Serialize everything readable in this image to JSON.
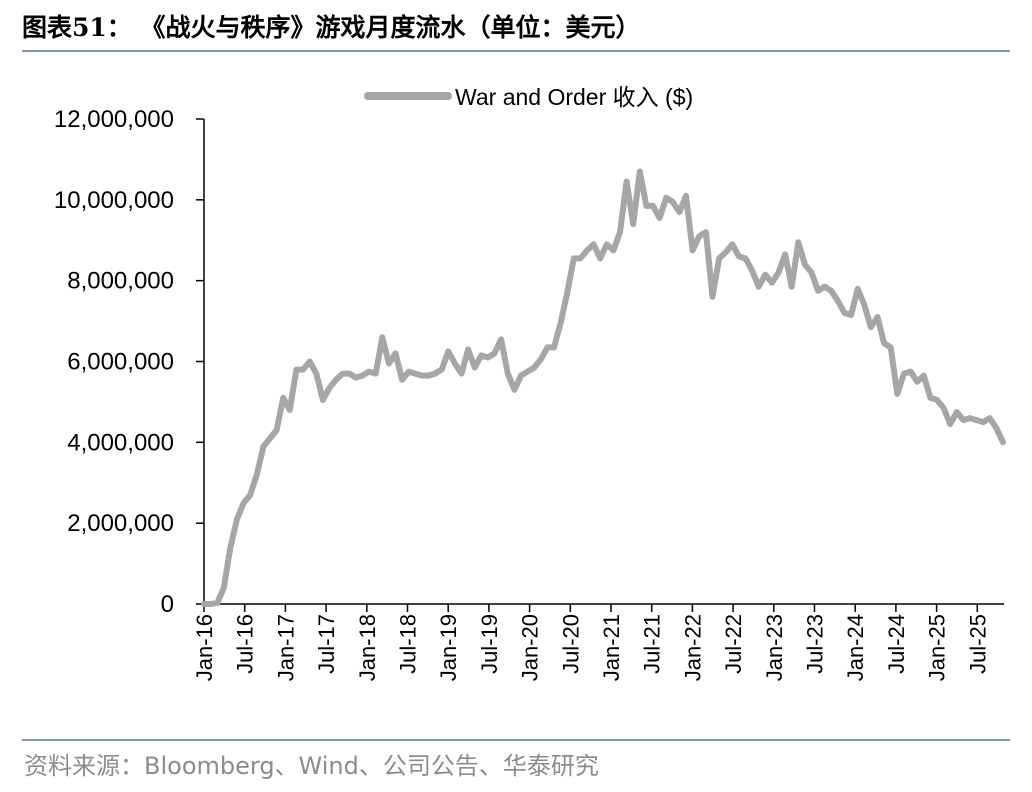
{
  "figure": {
    "title": "图表51：  《战火与秩序》游戏月度流水（单位：美元）",
    "source": "资料来源：Bloomberg、Wind、公司公告、华泰研究"
  },
  "chart_data": {
    "type": "line",
    "ylim": [
      0,
      12000000
    ],
    "yticks": [
      "0",
      "2,000,000",
      "4,000,000",
      "6,000,000",
      "8,000,000",
      "10,000,000",
      "12,000,000"
    ],
    "ytick_values": [
      0,
      2000000,
      4000000,
      6000000,
      8000000,
      10000000,
      12000000
    ],
    "tick_labels": [
      "Jan-16",
      "Jul-16",
      "Jan-17",
      "Jul-17",
      "Jan-18",
      "Jul-18",
      "Jan-19",
      "Jul-19",
      "Jan-20",
      "Jul-20",
      "Jan-21",
      "Jul-21",
      "Jan-22",
      "Jul-22",
      "Jan-23",
      "Jul-23",
      "Jan-24",
      "Jul-24",
      "Jan-25",
      "Jul-25"
    ],
    "legend_position": "top-center",
    "grid": false,
    "series": [
      {
        "name": "War and Order 收入 ($)",
        "color": "#a6a6a6",
        "start": "Jan-16",
        "frequency": "monthly",
        "values": [
          0,
          0,
          20000,
          400000,
          1400000,
          2100000,
          2500000,
          2700000,
          3200000,
          3900000,
          4100000,
          4300000,
          5100000,
          4800000,
          5800000,
          5800000,
          6000000,
          5700000,
          5050000,
          5350000,
          5550000,
          5700000,
          5700000,
          5600000,
          5650000,
          5750000,
          5700000,
          6600000,
          5950000,
          6200000,
          5550000,
          5750000,
          5700000,
          5650000,
          5650000,
          5700000,
          5800000,
          6250000,
          5950000,
          5700000,
          6300000,
          5850000,
          6150000,
          6100000,
          6200000,
          6550000,
          5700000,
          5300000,
          5650000,
          5750000,
          5850000,
          6050000,
          6350000,
          6350000,
          6950000,
          7700000,
          8550000,
          8550000,
          8750000,
          8900000,
          8550000,
          8900000,
          8750000,
          9200000,
          10450000,
          9400000,
          10700000,
          9850000,
          9850000,
          9550000,
          10050000,
          9950000,
          9700000,
          10100000,
          8750000,
          9100000,
          9200000,
          7600000,
          8550000,
          8700000,
          8900000,
          8600000,
          8550000,
          8250000,
          7850000,
          8150000,
          7950000,
          8200000,
          8650000,
          7850000,
          8950000,
          8400000,
          8200000,
          7750000,
          7850000,
          7750000,
          7500000,
          7200000,
          7150000,
          7800000,
          7400000,
          6850000,
          7100000,
          6450000,
          6350000,
          5200000,
          5700000,
          5750000,
          5500000,
          5650000,
          5100000,
          5050000,
          4850000,
          4450000,
          4750000,
          4550000,
          4600000,
          4550000,
          4500000,
          4600000,
          4350000,
          4000000
        ]
      }
    ]
  }
}
